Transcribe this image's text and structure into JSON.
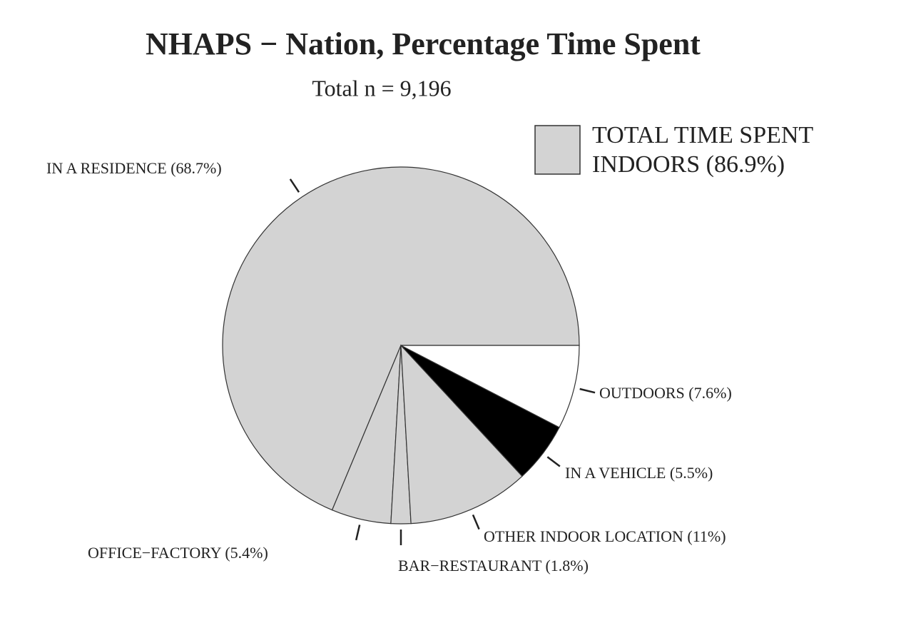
{
  "chart_data": {
    "type": "pie",
    "title": "NHAPS − Nation, Percentage Time Spent",
    "subtitle": "Total n = 9,196",
    "categories": [
      "IN A RESIDENCE",
      "OFFICE−FACTORY",
      "BAR−RESTAURANT",
      "OTHER INDOOR LOCATION",
      "IN A VEHICLE",
      "OUTDOORS"
    ],
    "values": [
      68.7,
      5.4,
      1.8,
      11,
      5.5,
      7.6
    ],
    "value_labels": [
      "(68.7%)",
      "(5.4%)",
      "(1.8%)",
      "(11%)",
      "(5.5%)",
      "(7.6%)"
    ],
    "colors": [
      "#d3d3d3",
      "#d3d3d3",
      "#d3d3d3",
      "#d3d3d3",
      "#000000",
      "#ffffff"
    ],
    "legend": {
      "lines": [
        "TOTAL TIME SPENT",
        "INDOORS (86.9%)"
      ],
      "color": "#d3d3d3"
    }
  }
}
